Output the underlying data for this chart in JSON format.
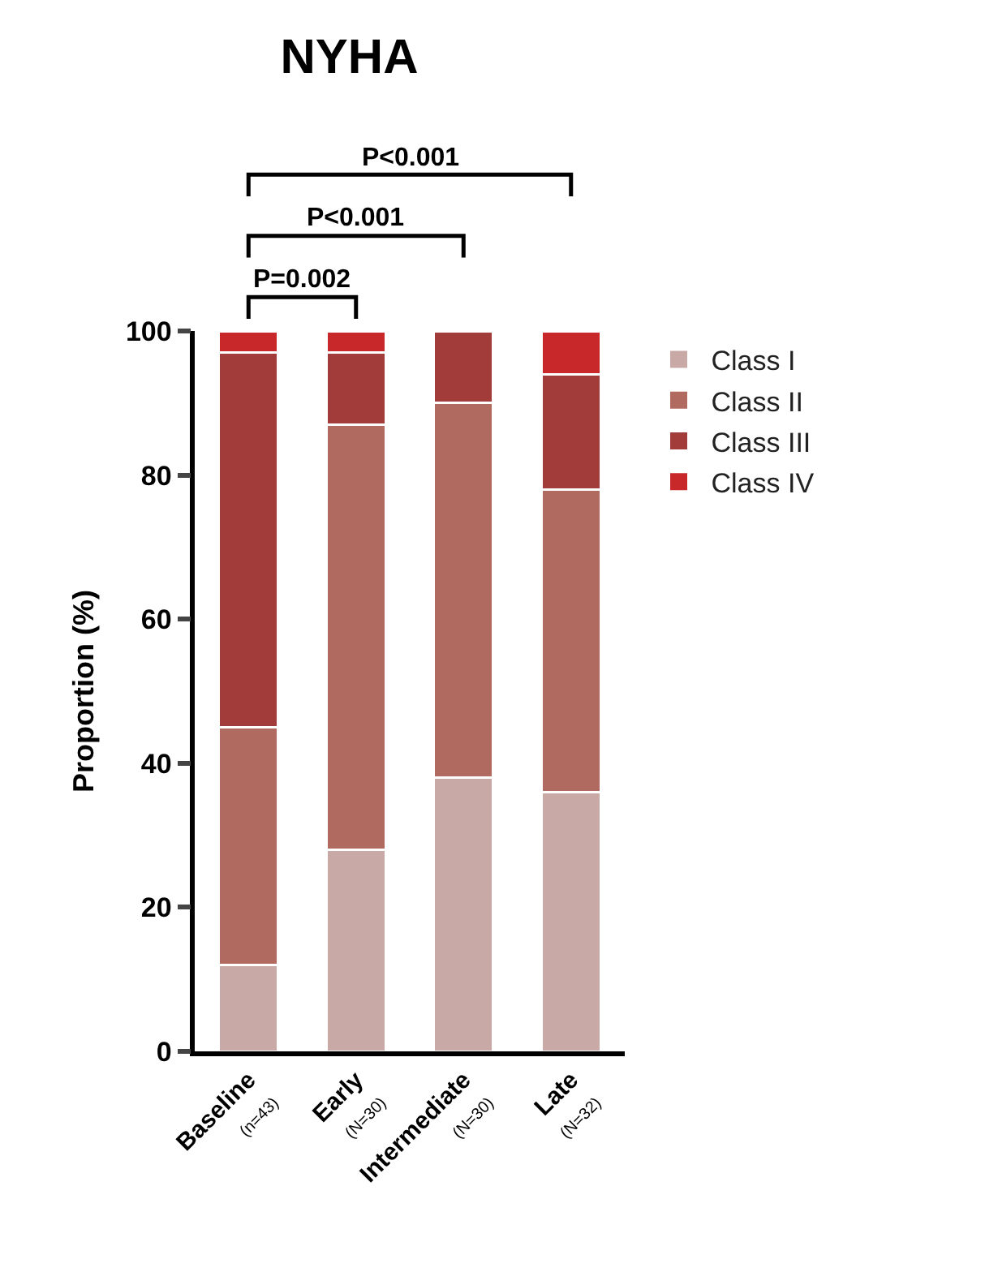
{
  "chart_data": {
    "type": "bar",
    "stacked": true,
    "title": "NYHA",
    "ylabel": "Proportion (%)",
    "categories": [
      "Baseline\n(n=43)",
      "Early\n(N=30)",
      "Intermediate\n(N=30)",
      "Late\n(N=32)"
    ],
    "series": [
      {
        "name": "Class I",
        "color": "#c9a9a6",
        "values": [
          12,
          28,
          38,
          36
        ]
      },
      {
        "name": "Class II",
        "color": "#b06a60",
        "values": [
          33,
          59,
          52,
          42
        ]
      },
      {
        "name": "Class III",
        "color": "#a13c3a",
        "values": [
          52,
          10,
          10,
          16
        ]
      },
      {
        "name": "Class IV",
        "color": "#c8282a",
        "values": [
          3,
          3,
          0,
          6
        ]
      }
    ],
    "ylim": [
      0,
      100
    ],
    "yticks": [
      0,
      20,
      40,
      60,
      80,
      100
    ],
    "legend": "top right",
    "annotations": [
      "P=0.002",
      "P<0.001",
      "P<0.001"
    ]
  }
}
